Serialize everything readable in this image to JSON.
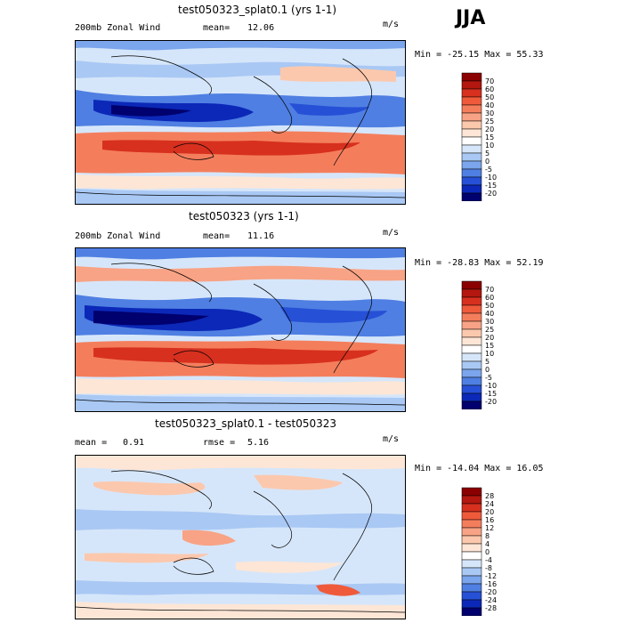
{
  "season": "JJA",
  "panels": [
    {
      "title": "test050323_splat0.1 (yrs 1-1)",
      "left_label": "200mb Zonal Wind",
      "stat_label": "mean=",
      "stat_value": "12.06",
      "units": "m/s",
      "minmax": "Min = -25.15 Max =  55.33",
      "levels": [
        "70",
        "60",
        "50",
        "40",
        "30",
        "25",
        "20",
        "15",
        "10",
        "5",
        "0",
        "-5",
        "-10",
        "-15",
        "-20"
      ],
      "colors": [
        "#8b0000",
        "#b3170f",
        "#d7301f",
        "#ef5a3a",
        "#f47e5c",
        "#f8a385",
        "#fcc8ad",
        "#fde6d6",
        "#ffffff",
        "#d6e6fa",
        "#a9c8f4",
        "#7ba5ec",
        "#4f7fe2",
        "#2650d6",
        "#0b28b8",
        "#00006e"
      ]
    },
    {
      "title": "test050323 (yrs 1-1)",
      "left_label": "200mb Zonal Wind",
      "stat_label": "mean=",
      "stat_value": "11.16",
      "units": "m/s",
      "minmax": "Min = -28.83 Max =  52.19",
      "levels": [
        "70",
        "60",
        "50",
        "40",
        "30",
        "25",
        "20",
        "15",
        "10",
        "5",
        "0",
        "-5",
        "-10",
        "-15",
        "-20"
      ],
      "colors": [
        "#8b0000",
        "#b3170f",
        "#d7301f",
        "#ef5a3a",
        "#f47e5c",
        "#f8a385",
        "#fcc8ad",
        "#fde6d6",
        "#ffffff",
        "#d6e6fa",
        "#a9c8f4",
        "#7ba5ec",
        "#4f7fe2",
        "#2650d6",
        "#0b28b8",
        "#00006e"
      ]
    },
    {
      "title": "test050323_splat0.1 - test050323",
      "left_label": "mean =",
      "left_value": "0.91",
      "stat_label": "rmse =",
      "stat_value": "5.16",
      "units": "m/s",
      "minmax": "Min = -14.04 Max =  16.05",
      "levels": [
        "28",
        "24",
        "20",
        "16",
        "12",
        "8",
        "4",
        "0",
        "-4",
        "-8",
        "-12",
        "-16",
        "-20",
        "-24",
        "-28"
      ],
      "colors": [
        "#8b0000",
        "#b3170f",
        "#d7301f",
        "#ef5a3a",
        "#f47e5c",
        "#f8a385",
        "#fcc8ad",
        "#fde6d6",
        "#ffffff",
        "#d6e6fa",
        "#a9c8f4",
        "#7ba5ec",
        "#4f7fe2",
        "#2650d6",
        "#0b28b8",
        "#00006e"
      ]
    }
  ]
}
